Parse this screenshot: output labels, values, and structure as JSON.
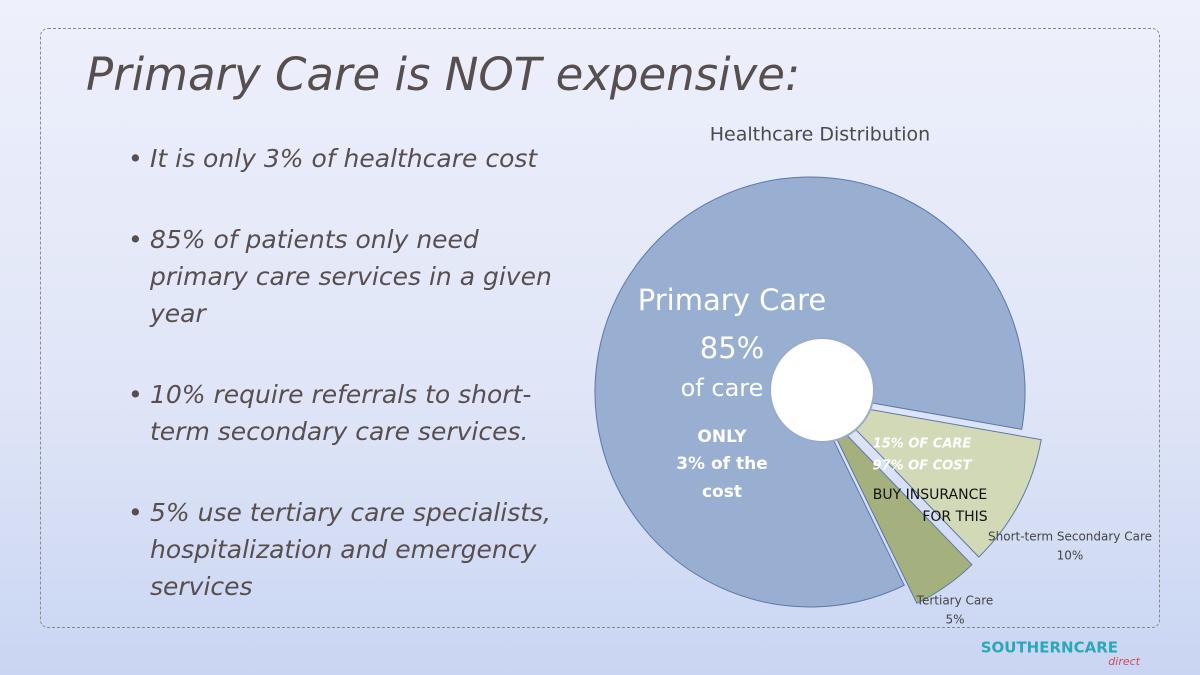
{
  "title": "Primary Care is NOT expensive:",
  "bullets": [
    "It is only 3% of healthcare cost",
    "85% of patients only need primary care services in a given year",
    "10% require referrals to short-term secondary care services.",
    "5% use tertiary care specialists, hospitalization and emergency services"
  ],
  "logo": {
    "main": "SOUTHERNCARE",
    "sub": "direct"
  },
  "chart_data": {
    "type": "pie",
    "title": "Healthcare Distribution",
    "categories": [
      "Primary Care",
      "Short-term Secondary Care",
      "Tertiary Care"
    ],
    "values": [
      85,
      10,
      5
    ],
    "value_labels": [
      "85%",
      "10%",
      "5%"
    ],
    "colors": [
      "#98afd2",
      "#d2d9b6",
      "#a4b07e"
    ],
    "annotations": [
      "of care",
      "ONLY",
      "3% of the",
      "cost",
      "15% OF CARE",
      "97% OF COST",
      "BUY INSURANCE",
      "FOR THIS"
    ]
  }
}
